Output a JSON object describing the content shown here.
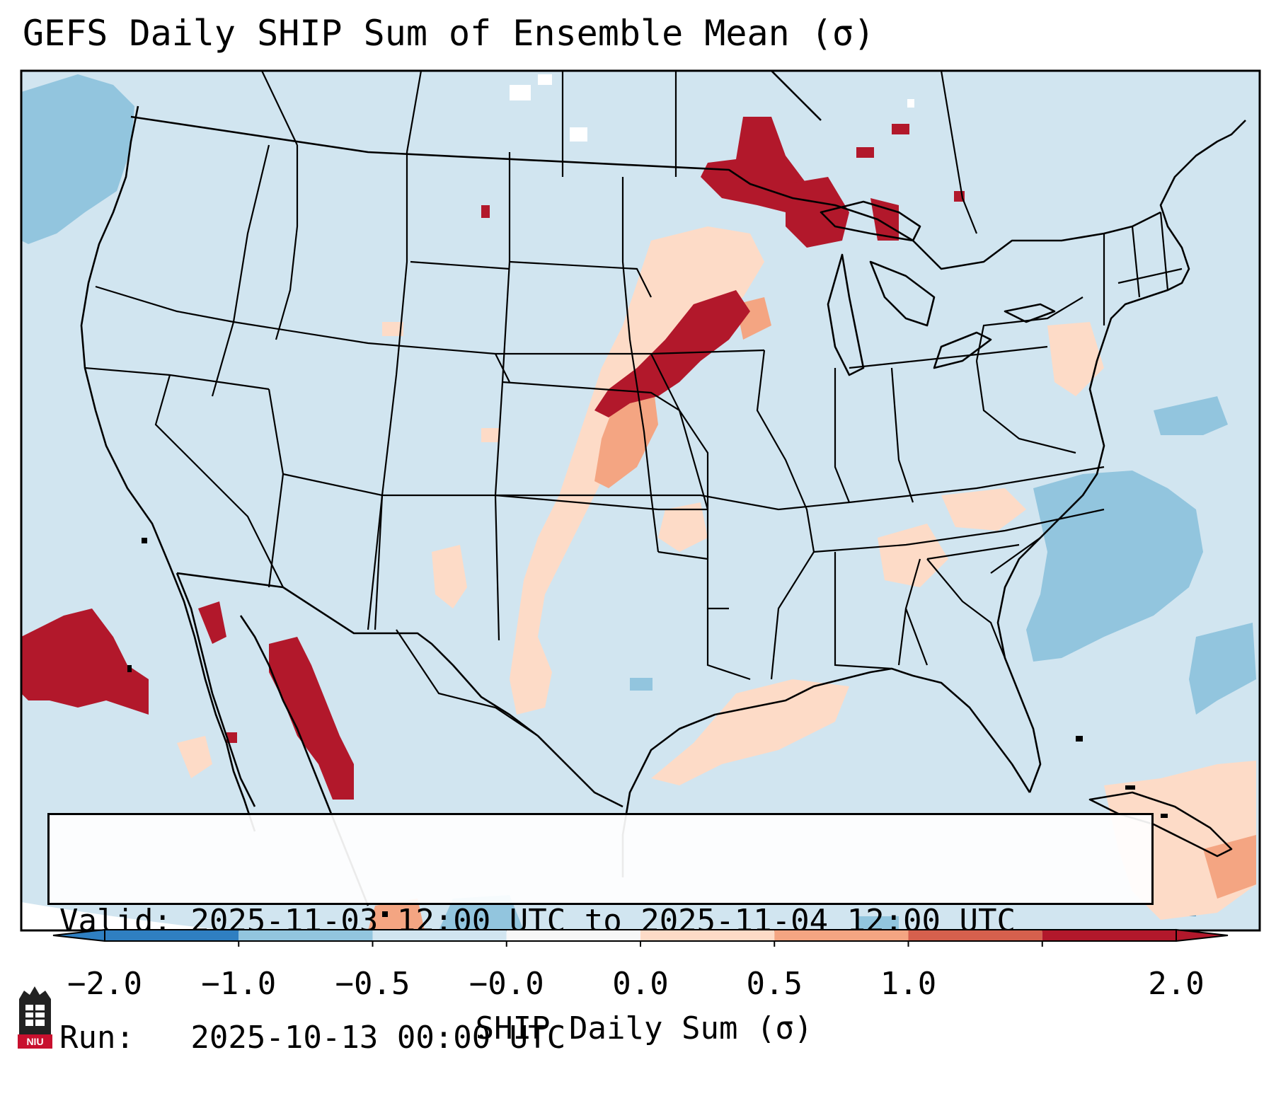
{
  "title": "GEFS Daily SHIP Sum of Ensemble Mean (σ)",
  "info": {
    "valid_line": "Valid: 2025-11-03 12:00 UTC to 2025-11-04 12:00 UTC",
    "run_line": "Run:   2025-10-13 00:00 UTC"
  },
  "colorbar": {
    "label": "SHIP Daily Sum (σ)",
    "ticks": [
      "−2.0",
      "−1.0",
      "−0.5",
      "−0.0",
      "0.0",
      "0.5",
      "1.0",
      "2.0"
    ],
    "colors": [
      "#2f7fc1",
      "#92c5de",
      "#d1e5f0",
      "#f7f7f7",
      "#fddbc7",
      "#f4a582",
      "#d6604d",
      "#b2182b"
    ],
    "extend": "both"
  },
  "map": {
    "background_color": "#d1e5f0",
    "region": "Contiguous United States, southern Canada, northern Mexico, Caribbean"
  },
  "logo": {
    "text": "NIU"
  }
}
